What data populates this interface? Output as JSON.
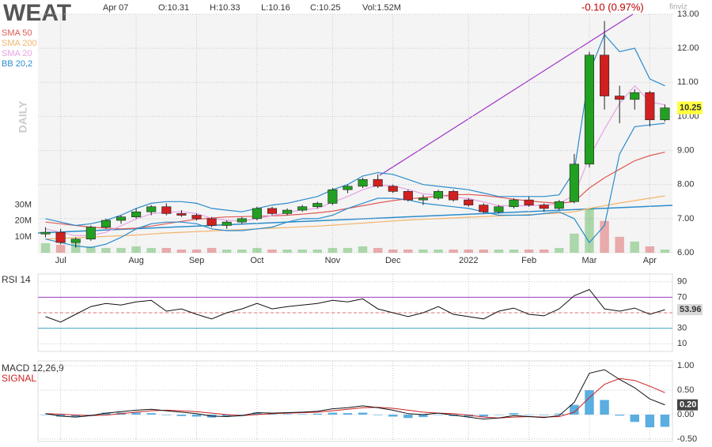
{
  "chart_data": [
    {
      "type": "candlestick",
      "title": "WEAT",
      "info": [
        "Apr 07",
        "O:10.31",
        "H:10.33",
        "L:10.16",
        "C:10.25",
        "Vol:1.52M"
      ],
      "change": "-0.10 (0.97%)",
      "source": "finviz",
      "ylabel": "DAILY",
      "categories": [
        null,
        "Jul",
        null,
        null,
        null,
        null,
        "Aug",
        null,
        null,
        null,
        "Sep",
        null,
        null,
        null,
        "Oct",
        null,
        null,
        null,
        null,
        "Nov",
        null,
        null,
        null,
        "Dec",
        null,
        null,
        null,
        null,
        "2022",
        null,
        null,
        null,
        "Feb",
        null,
        null,
        null,
        "Mar",
        null,
        null,
        null,
        "Apr",
        null
      ],
      "open": [
        6.55,
        6.6,
        6.3,
        6.4,
        6.75,
        6.95,
        7.05,
        7.2,
        7.35,
        7.15,
        7.1,
        7.0,
        6.8,
        6.9,
        7.0,
        7.3,
        7.15,
        7.25,
        7.35,
        7.45,
        7.85,
        7.95,
        8.15,
        7.95,
        7.8,
        7.55,
        7.6,
        7.8,
        7.55,
        7.4,
        7.2,
        7.35,
        7.55,
        7.4,
        7.3,
        7.5,
        8.6,
        11.8,
        10.6,
        10.5,
        10.7,
        9.9
      ],
      "high": [
        6.75,
        6.7,
        6.45,
        6.8,
        7.0,
        7.1,
        7.3,
        7.4,
        7.45,
        7.25,
        7.15,
        7.05,
        6.95,
        7.05,
        7.35,
        7.35,
        7.3,
        7.4,
        7.5,
        7.9,
        8.0,
        8.2,
        8.3,
        8.0,
        7.85,
        7.7,
        7.85,
        7.85,
        7.6,
        7.45,
        7.4,
        7.6,
        7.65,
        7.45,
        7.55,
        8.9,
        11.9,
        12.8,
        10.9,
        10.8,
        10.75,
        10.35
      ],
      "low": [
        6.45,
        6.25,
        6.15,
        6.35,
        6.7,
        6.85,
        7.0,
        7.1,
        7.1,
        7.05,
        6.95,
        6.75,
        6.7,
        6.85,
        6.95,
        7.1,
        7.1,
        7.2,
        7.3,
        7.4,
        7.75,
        7.9,
        7.9,
        7.75,
        7.5,
        7.4,
        7.55,
        7.5,
        7.35,
        7.15,
        7.15,
        7.3,
        7.35,
        7.2,
        7.25,
        7.45,
        8.5,
        10.2,
        9.8,
        10.2,
        9.7,
        9.85
      ],
      "close": [
        6.6,
        6.3,
        6.4,
        6.75,
        6.95,
        7.05,
        7.2,
        7.35,
        7.15,
        7.1,
        7.0,
        6.8,
        6.9,
        7.0,
        7.3,
        7.15,
        7.25,
        7.35,
        7.45,
        7.85,
        7.95,
        8.15,
        7.95,
        7.8,
        7.55,
        7.6,
        7.8,
        7.55,
        7.4,
        7.2,
        7.35,
        7.55,
        7.4,
        7.3,
        7.5,
        8.6,
        11.8,
        10.6,
        10.5,
        10.7,
        9.9,
        10.25
      ],
      "volume": [
        6,
        5,
        8,
        4,
        3,
        3,
        4,
        3,
        3,
        2,
        2,
        3,
        2,
        2,
        3,
        2,
        2,
        2,
        2,
        3,
        3,
        4,
        3,
        2,
        2,
        2,
        2,
        2,
        2,
        2,
        2,
        2,
        2,
        2,
        3,
        12,
        28,
        20,
        10,
        7,
        4,
        2
      ],
      "ylim": [
        6,
        13
      ],
      "yticks": [
        {
          "value": 6,
          "label": "6.00"
        },
        {
          "value": 7,
          "label": "7.00"
        },
        {
          "value": 8,
          "label": "8.00"
        },
        {
          "value": 9,
          "label": "9.00"
        },
        {
          "value": 10,
          "label": "10.00"
        },
        {
          "value": 11,
          "label": "11.00"
        },
        {
          "value": 12,
          "label": "12.00"
        },
        {
          "value": 13,
          "label": "13.00"
        }
      ],
      "volume_ylim": [
        0,
        150
      ],
      "volume_ticks": [
        {
          "value": 10,
          "label": "10M"
        },
        {
          "value": 20,
          "label": "20M"
        },
        {
          "value": 30,
          "label": "30M"
        }
      ],
      "up_color": "#22a022",
      "down_color": "#d02020",
      "series": [
        {
          "name": "SMA 50",
          "color": "#e05a55",
          "values": [
            6.9,
            6.85,
            6.8,
            6.75,
            6.72,
            6.7,
            6.72,
            6.78,
            6.85,
            6.92,
            6.98,
            7.02,
            7.05,
            7.06,
            7.07,
            7.08,
            7.1,
            7.13,
            7.17,
            7.22,
            7.3,
            7.38,
            7.46,
            7.53,
            7.58,
            7.62,
            7.66,
            7.7,
            7.71,
            7.68,
            7.63,
            7.57,
            7.52,
            7.48,
            7.45,
            7.5,
            7.9,
            8.2,
            8.45,
            8.7,
            8.85,
            8.95
          ]
        },
        {
          "name": "SMA 200",
          "color": "#f2b46c",
          "values": [
            6.4,
            6.42,
            6.44,
            6.46,
            6.48,
            6.5,
            6.52,
            6.55,
            6.58,
            6.6,
            6.62,
            6.64,
            6.66,
            6.68,
            6.7,
            6.72,
            6.74,
            6.76,
            6.78,
            6.81,
            6.84,
            6.87,
            6.9,
            6.93,
            6.96,
            6.98,
            7.0,
            7.02,
            7.04,
            7.06,
            7.08,
            7.1,
            7.12,
            7.14,
            7.16,
            7.2,
            7.3,
            7.38,
            7.46,
            7.53,
            7.6,
            7.67
          ]
        },
        {
          "name": "SMA 20",
          "color": "#e8a2e4",
          "values": [
            6.7,
            6.6,
            6.5,
            6.51,
            6.6,
            6.79,
            6.99,
            7.14,
            7.19,
            7.2,
            7.15,
            7.01,
            6.95,
            6.93,
            7.0,
            7.09,
            7.18,
            7.26,
            7.3,
            7.48,
            7.65,
            7.85,
            7.98,
            7.96,
            7.86,
            7.73,
            7.69,
            7.63,
            7.59,
            7.49,
            7.38,
            7.38,
            7.38,
            7.4,
            7.44,
            7.7,
            8.8,
            9.63,
            10.38,
            10.9,
            10.43,
            10.34
          ]
        },
        {
          "name": "BB 20,2",
          "color": "#2a8ccc",
          "upper": [
            7.0,
            6.9,
            6.8,
            6.85,
            6.95,
            7.1,
            7.3,
            7.45,
            7.5,
            7.5,
            7.45,
            7.3,
            7.25,
            7.2,
            7.3,
            7.4,
            7.45,
            7.55,
            7.65,
            7.85,
            8.0,
            8.25,
            8.35,
            8.3,
            8.15,
            8.0,
            7.95,
            7.9,
            7.85,
            7.75,
            7.65,
            7.65,
            7.65,
            7.65,
            7.7,
            8.4,
            11.3,
            12.4,
            11.9,
            12.0,
            11.1,
            10.9
          ],
          "lower": [
            6.4,
            6.3,
            6.2,
            6.15,
            6.25,
            6.45,
            6.7,
            6.85,
            6.9,
            6.9,
            6.85,
            6.7,
            6.65,
            6.65,
            6.7,
            6.75,
            6.9,
            7.0,
            7.0,
            7.1,
            7.3,
            7.45,
            7.6,
            7.6,
            7.55,
            7.45,
            7.4,
            7.35,
            7.3,
            7.2,
            7.1,
            7.1,
            7.1,
            7.15,
            7.2,
            7.0,
            6.3,
            6.8,
            8.9,
            9.7,
            9.75,
            9.8
          ]
        }
      ]
    },
    {
      "type": "line",
      "title": "RSI 14",
      "color": "#111111",
      "values": [
        45,
        38,
        48,
        58,
        62,
        60,
        64,
        66,
        52,
        55,
        48,
        42,
        50,
        55,
        62,
        55,
        58,
        60,
        62,
        66,
        64,
        68,
        55,
        50,
        45,
        50,
        58,
        48,
        45,
        42,
        52,
        56,
        48,
        46,
        55,
        72,
        80,
        55,
        52,
        56,
        48,
        53.96
      ],
      "ylim": [
        0,
        100
      ],
      "yticks": [
        10,
        30,
        50,
        70,
        90
      ],
      "reference_lines": [
        {
          "value": 70,
          "color": "#a040c0"
        },
        {
          "value": 50,
          "color": "#e07070"
        },
        {
          "value": 30,
          "color": "#40a8c8"
        }
      ]
    },
    {
      "type": "macd",
      "title": "MACD 12,26,9",
      "color": "#111111",
      "values": [
        0.02,
        -0.03,
        -0.05,
        -0.02,
        0.03,
        0.06,
        0.09,
        0.11,
        0.08,
        0.05,
        0.02,
        -0.03,
        -0.04,
        -0.02,
        0.04,
        0.03,
        0.04,
        0.05,
        0.07,
        0.12,
        0.14,
        0.18,
        0.14,
        0.09,
        0.02,
        0.0,
        0.03,
        -0.01,
        -0.05,
        -0.09,
        -0.07,
        -0.02,
        -0.04,
        -0.06,
        -0.02,
        0.25,
        0.85,
        0.92,
        0.72,
        0.55,
        0.32,
        0.2
      ],
      "value_labels": [
        null,
        null,
        null,
        null,
        null,
        null,
        null,
        null,
        null,
        null,
        null,
        null,
        null,
        null,
        null,
        null,
        null,
        null,
        null,
        null,
        null,
        null,
        null,
        null,
        null,
        null,
        null,
        null,
        null,
        null,
        null,
        null,
        null,
        null,
        null,
        null,
        null,
        null,
        null,
        null,
        null,
        "0.20"
      ],
      "signal": {
        "name": "SIGNAL",
        "color": "#cc2222",
        "values": [
          0.02,
          0.01,
          -0.01,
          -0.02,
          -0.01,
          0.02,
          0.05,
          0.08,
          0.09,
          0.08,
          0.06,
          0.03,
          0.0,
          -0.02,
          0.0,
          0.02,
          0.03,
          0.04,
          0.05,
          0.08,
          0.11,
          0.14,
          0.15,
          0.13,
          0.09,
          0.05,
          0.03,
          0.02,
          -0.01,
          -0.05,
          -0.07,
          -0.05,
          -0.04,
          -0.05,
          -0.04,
          0.05,
          0.35,
          0.62,
          0.74,
          0.7,
          0.58,
          0.45
        ]
      },
      "histogram": {
        "color": "#5aaee0",
        "values": [
          0,
          -0.04,
          -0.04,
          0,
          0.04,
          0.04,
          0.04,
          0.03,
          -0.01,
          -0.03,
          -0.04,
          -0.06,
          -0.04,
          0,
          0.04,
          0.01,
          0.01,
          0.01,
          0.02,
          0.04,
          0.03,
          0.04,
          -0.01,
          -0.04,
          -0.07,
          -0.05,
          0,
          -0.03,
          -0.04,
          -0.04,
          0,
          0.03,
          0,
          -0.01,
          0.02,
          0.2,
          0.5,
          0.3,
          -0.02,
          -0.15,
          -0.26,
          -0.25
        ]
      },
      "ylim": [
        -0.55,
        1.1
      ],
      "yticks": [
        {
          "value": -0.5,
          "label": "-0.50"
        },
        {
          "value": 0,
          "label": "0.00"
        },
        {
          "value": 0.5,
          "label": "0.50"
        },
        {
          "value": 1,
          "label": "1.00"
        }
      ]
    }
  ]
}
